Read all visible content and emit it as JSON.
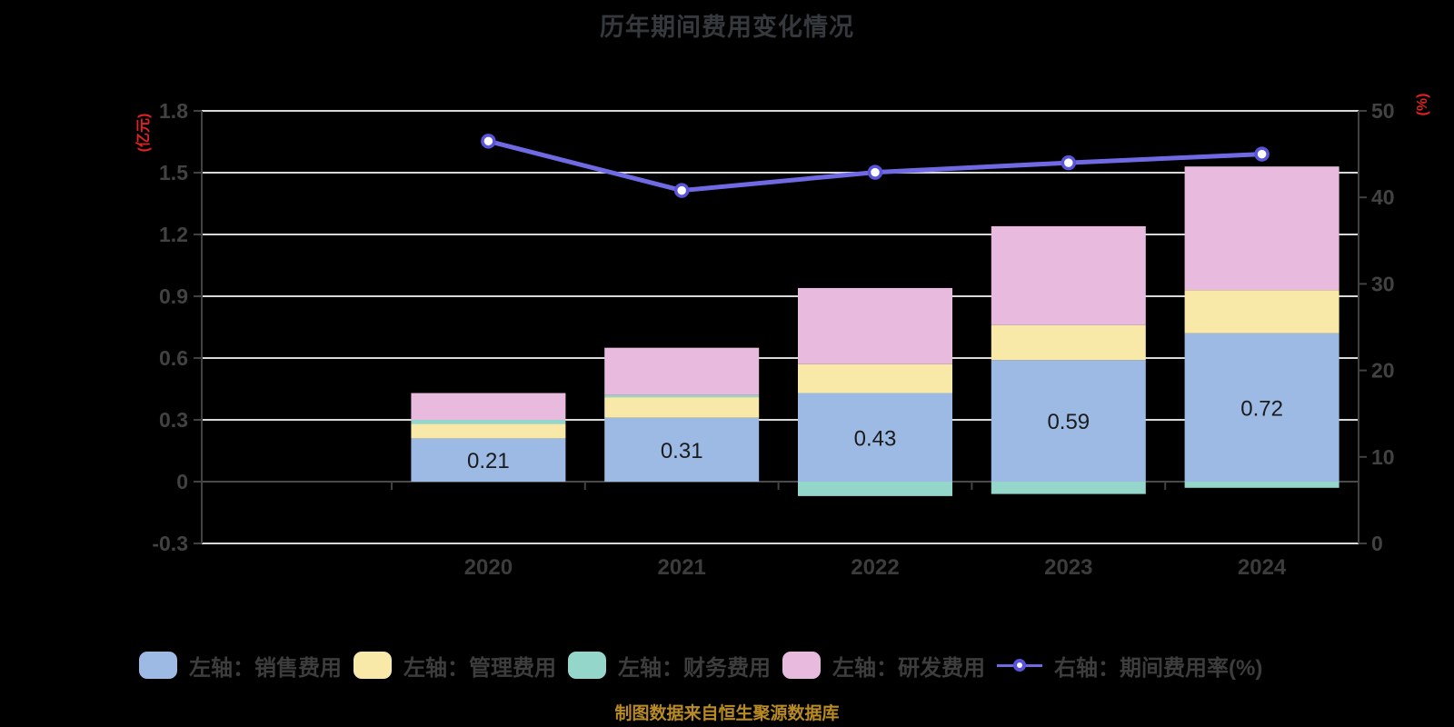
{
  "title": "历年期间费用变化情况",
  "source_note": "制图数据来自恒生聚源数据库",
  "source_note_color": "#b98b25",
  "chart_data": {
    "type": "stacked-bar+line",
    "categories": [
      "2020",
      "2021",
      "2022",
      "2023",
      "2024"
    ],
    "series": [
      {
        "key": "sales",
        "kind": "bar",
        "name": "左轴：销售费用",
        "color": "#9cbae4",
        "values": [
          0.21,
          0.31,
          0.43,
          0.59,
          0.72
        ],
        "labels": [
          "0.21",
          "0.31",
          "0.43",
          "0.59",
          "0.72"
        ]
      },
      {
        "key": "admin",
        "kind": "bar",
        "name": "左轴：管理费用",
        "color": "#f8e9a8",
        "values": [
          0.07,
          0.1,
          0.14,
          0.17,
          0.21
        ]
      },
      {
        "key": "finance",
        "kind": "bar",
        "name": "左轴：财务费用",
        "color": "#95d6cb",
        "values": [
          0.02,
          0.01,
          -0.07,
          -0.06,
          -0.03
        ]
      },
      {
        "key": "rd",
        "kind": "bar",
        "name": "左轴：研发费用",
        "color": "#e8bade",
        "values": [
          0.13,
          0.23,
          0.37,
          0.48,
          0.6
        ]
      },
      {
        "key": "expense-ratio",
        "kind": "line",
        "name": "右轴：期间费用率(%)",
        "color": "#6f6ae4",
        "marker_border": "#5a54dc",
        "marker_fill": "#ffffff",
        "axis": "right",
        "values": [
          46.5,
          40.8,
          42.9,
          44.0,
          45.0
        ]
      }
    ],
    "left_axis": {
      "unit": "(亿元)",
      "min": -0.3,
      "max": 1.8,
      "ticks": [
        1.8,
        1.5,
        1.2,
        0.9,
        0.6,
        0.3,
        0,
        -0.3
      ]
    },
    "right_axis": {
      "unit": "(%)",
      "min": 0,
      "max": 50,
      "ticks": [
        50,
        40,
        30,
        20,
        10,
        0
      ]
    },
    "style": {
      "grid_color": "#d9d9d9",
      "axis_line_color": "#424242",
      "zero_line_color": "#4a4a4a",
      "tick_label_color": "#424242",
      "category_label_color": "#3c3c3c",
      "bar_label_color": "#1b1b1b",
      "unit_label_color": "#e02222",
      "legend_on": true,
      "legend_position": "bottom",
      "grid_on": true
    }
  }
}
